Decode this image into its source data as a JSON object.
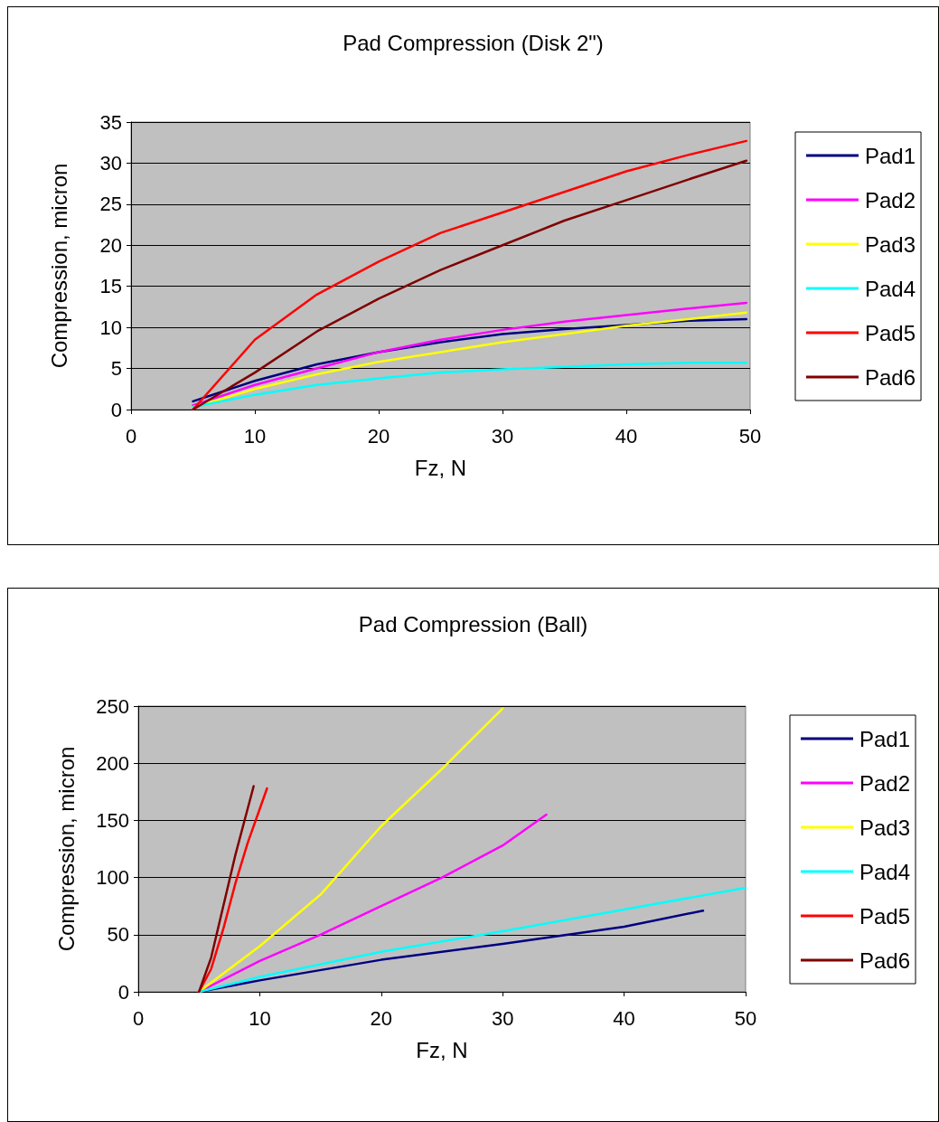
{
  "chart_data": [
    {
      "type": "line",
      "title": "Pad Compression (Disk 2\")",
      "xlabel": "Fz, N",
      "ylabel": "Compression, micron",
      "xlim": [
        0,
        50
      ],
      "xticks": [
        0,
        10,
        20,
        30,
        40,
        50
      ],
      "ylim": [
        0,
        35
      ],
      "yticks": [
        0,
        5,
        10,
        15,
        20,
        25,
        30,
        35
      ],
      "grid": "y",
      "legend": "right",
      "marker": "none",
      "line_style": "solid",
      "series": [
        {
          "name": "Pad1",
          "color": "#000080",
          "x": [
            5,
            10,
            15,
            20,
            25,
            30,
            35,
            40,
            45,
            49.7
          ],
          "values": [
            1,
            3.5,
            5.5,
            7,
            8.2,
            9.2,
            9.8,
            10.3,
            10.8,
            11
          ]
        },
        {
          "name": "Pad2",
          "color": "#ff00ff",
          "x": [
            5,
            10,
            15,
            20,
            25,
            30,
            35,
            40,
            45,
            49.7
          ],
          "values": [
            0.5,
            3,
            5,
            7,
            8.5,
            9.7,
            10.7,
            11.5,
            12.3,
            13
          ]
        },
        {
          "name": "Pad3",
          "color": "#ffff00",
          "x": [
            5,
            10,
            15,
            20,
            25,
            30,
            35,
            40,
            45,
            49.7
          ],
          "values": [
            0.3,
            2.5,
            4.3,
            5.8,
            7,
            8.2,
            9.2,
            10.2,
            11,
            11.8
          ]
        },
        {
          "name": "Pad4",
          "color": "#00ffff",
          "x": [
            5,
            10,
            15,
            20,
            25,
            30,
            35,
            40,
            45,
            49.7
          ],
          "values": [
            0.3,
            1.8,
            3,
            3.8,
            4.5,
            4.9,
            5.2,
            5.5,
            5.7,
            5.7
          ]
        },
        {
          "name": "Pad5",
          "color": "#ff0000",
          "x": [
            5,
            10,
            15,
            20,
            25,
            30,
            35,
            40,
            45,
            49.7
          ],
          "values": [
            0,
            8.5,
            14,
            18,
            21.5,
            24,
            26.5,
            29,
            31,
            32.7
          ]
        },
        {
          "name": "Pad6",
          "color": "#800000",
          "x": [
            5,
            10,
            15,
            20,
            25,
            30,
            35,
            40,
            45,
            49.7
          ],
          "values": [
            0,
            4.5,
            9.5,
            13.5,
            17,
            20,
            23,
            25.5,
            28,
            30.3
          ]
        }
      ]
    },
    {
      "type": "line",
      "title": "Pad Compression (Ball)",
      "xlabel": "Fz, N",
      "ylabel": "Compression, micron",
      "xlim": [
        0,
        50
      ],
      "xticks": [
        0,
        10,
        20,
        30,
        40,
        50
      ],
      "ylim": [
        0,
        250
      ],
      "yticks": [
        0,
        50,
        100,
        150,
        200,
        250
      ],
      "grid": "y",
      "legend": "right",
      "marker": "none",
      "line_style": "solid",
      "series": [
        {
          "name": "Pad1",
          "color": "#000080",
          "x": [
            5,
            10,
            20,
            30,
            40,
            46.5
          ],
          "values": [
            0,
            10,
            28,
            42,
            57,
            71
          ]
        },
        {
          "name": "Pad2",
          "color": "#ff00ff",
          "x": [
            5,
            10,
            15,
            20,
            25,
            30,
            33.6
          ],
          "values": [
            0,
            27,
            50,
            75,
            100,
            128,
            155
          ]
        },
        {
          "name": "Pad3",
          "color": "#ffff00",
          "x": [
            5,
            10,
            15,
            20,
            25,
            30
          ],
          "values": [
            0,
            40,
            85,
            145,
            195,
            248
          ]
        },
        {
          "name": "Pad4",
          "color": "#00ffff",
          "x": [
            5,
            10,
            20,
            30,
            40,
            50
          ],
          "values": [
            0,
            13,
            35,
            53,
            72,
            91
          ]
        },
        {
          "name": "Pad5",
          "color": "#ff0000",
          "x": [
            5,
            6,
            7,
            8,
            9,
            10,
            10.6
          ],
          "values": [
            0,
            20,
            55,
            95,
            130,
            160,
            178
          ]
        },
        {
          "name": "Pad6",
          "color": "#800000",
          "x": [
            5,
            6,
            7,
            8,
            9,
            9.5
          ],
          "values": [
            0,
            30,
            75,
            120,
            160,
            180
          ]
        }
      ]
    }
  ]
}
